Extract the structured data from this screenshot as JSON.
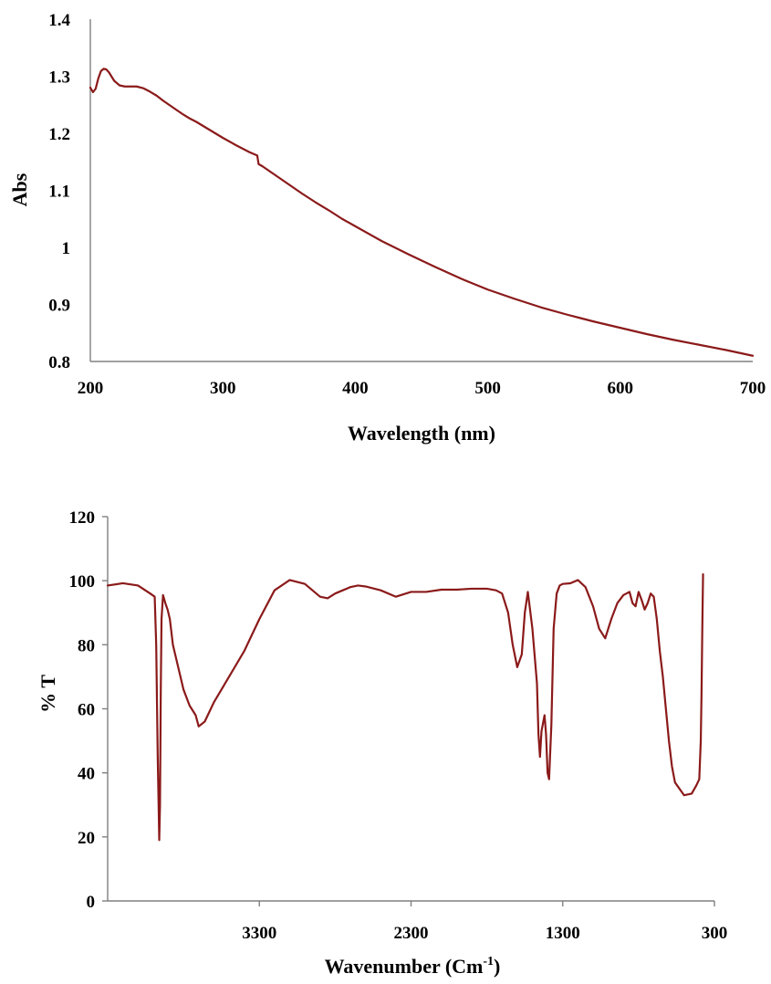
{
  "colors": {
    "series": "#8b1a1a",
    "axis": "#808080",
    "text": "#000000"
  },
  "chart_data": [
    {
      "type": "line",
      "xlabel": "Wavelength (nm)",
      "ylabel": "Abs",
      "xlim": [
        200,
        700
      ],
      "ylim": [
        0.8,
        1.4
      ],
      "xticks": [
        200,
        300,
        400,
        500,
        600,
        700
      ],
      "xtick_labels": [
        "200",
        "300",
        "400",
        "500",
        "600",
        "700"
      ],
      "yticks": [
        0.8,
        0.9,
        1.0,
        1.1,
        1.2,
        1.3,
        1.4
      ],
      "ytick_labels": [
        "0.8",
        "0.9",
        "1",
        "1.1",
        "1.2",
        "1.3",
        "1.4"
      ],
      "grid": false,
      "series": [
        {
          "x": [
            200,
            202,
            204,
            206,
            208,
            210,
            212,
            214,
            218,
            222,
            226,
            230,
            235,
            240,
            245,
            250,
            255,
            260,
            265,
            270,
            275,
            280,
            290,
            300,
            310,
            320,
            326,
            327,
            330,
            340,
            350,
            360,
            370,
            380,
            390,
            400,
            420,
            440,
            460,
            480,
            500,
            520,
            540,
            560,
            580,
            600,
            620,
            640,
            660,
            680,
            700
          ],
          "y": [
            1.28,
            1.272,
            1.278,
            1.296,
            1.309,
            1.313,
            1.312,
            1.307,
            1.292,
            1.284,
            1.282,
            1.282,
            1.282,
            1.279,
            1.273,
            1.266,
            1.257,
            1.249,
            1.241,
            1.233,
            1.226,
            1.22,
            1.206,
            1.192,
            1.179,
            1.167,
            1.161,
            1.146,
            1.142,
            1.126,
            1.11,
            1.094,
            1.079,
            1.065,
            1.05,
            1.037,
            1.011,
            0.988,
            0.966,
            0.945,
            0.926,
            0.91,
            0.895,
            0.882,
            0.87,
            0.859,
            0.848,
            0.838,
            0.829,
            0.82,
            0.81
          ]
        }
      ]
    },
    {
      "type": "line",
      "xlabel": "Wavenumber (Cm",
      "xlabel_sup": "-1",
      "xlabel_tail": ")",
      "ylabel": "% T",
      "xlim": [
        4300,
        300
      ],
      "ylim": [
        0,
        120
      ],
      "xticks": [
        3300,
        2300,
        1300,
        300
      ],
      "xtick_labels": [
        "3300",
        "2300",
        "1300",
        "300"
      ],
      "yticks": [
        0,
        20,
        40,
        60,
        80,
        100,
        120
      ],
      "ytick_labels": [
        "0",
        "20",
        "40",
        "60",
        "80",
        "100",
        "120"
      ],
      "grid": false,
      "series": [
        {
          "x": [
            4300,
            4200,
            4100,
            4020,
            3990,
            3980,
            3970,
            3960,
            3955,
            3950,
            3945,
            3935,
            3920,
            3905,
            3890,
            3870,
            3800,
            3760,
            3720,
            3700,
            3660,
            3600,
            3500,
            3400,
            3300,
            3200,
            3100,
            3000,
            2950,
            2900,
            2850,
            2800,
            2750,
            2700,
            2650,
            2600,
            2500,
            2400,
            2300,
            2200,
            2100,
            2000,
            1900,
            1800,
            1740,
            1700,
            1660,
            1630,
            1600,
            1570,
            1550,
            1530,
            1500,
            1470,
            1460,
            1450,
            1440,
            1420,
            1410,
            1400,
            1390,
            1375,
            1360,
            1340,
            1320,
            1300,
            1250,
            1200,
            1150,
            1100,
            1060,
            1020,
            980,
            940,
            900,
            860,
            840,
            820,
            800,
            780,
            760,
            740,
            720,
            700,
            680,
            660,
            640,
            620,
            600,
            580,
            560,
            500,
            450,
            420,
            400,
            390,
            385,
            380,
            375
          ],
          "y": [
            98.5,
            99.2,
            98.5,
            96.0,
            95.0,
            80.0,
            45.0,
            19.0,
            30.0,
            65.0,
            88.0,
            95.5,
            93.0,
            91.0,
            88.0,
            80.0,
            66.0,
            61.0,
            58.0,
            54.5,
            56.0,
            62.0,
            70.0,
            78.0,
            88.0,
            97.0,
            100.2,
            99.0,
            97.0,
            95.0,
            94.5,
            96.0,
            97.0,
            98.0,
            98.5,
            98.2,
            97.0,
            95.0,
            96.5,
            96.5,
            97.2,
            97.2,
            97.5,
            97.5,
            97.0,
            96.0,
            90.0,
            80.0,
            73.0,
            77.0,
            90.0,
            96.5,
            85.0,
            68.0,
            52.0,
            45.0,
            53.0,
            58.0,
            52.0,
            40.0,
            38.0,
            55.0,
            85.0,
            96.0,
            98.5,
            99.0,
            99.2,
            100.2,
            98.0,
            92.0,
            85.0,
            82.0,
            88.0,
            93.0,
            95.5,
            96.5,
            93.0,
            92.0,
            96.5,
            94.0,
            91.0,
            93.0,
            96.0,
            95.0,
            88.0,
            78.0,
            70.0,
            60.0,
            50.0,
            42.0,
            37.0,
            33.0,
            33.5,
            36.0,
            38.0,
            50.0,
            65.0,
            85.0,
            102.0
          ]
        }
      ]
    }
  ]
}
